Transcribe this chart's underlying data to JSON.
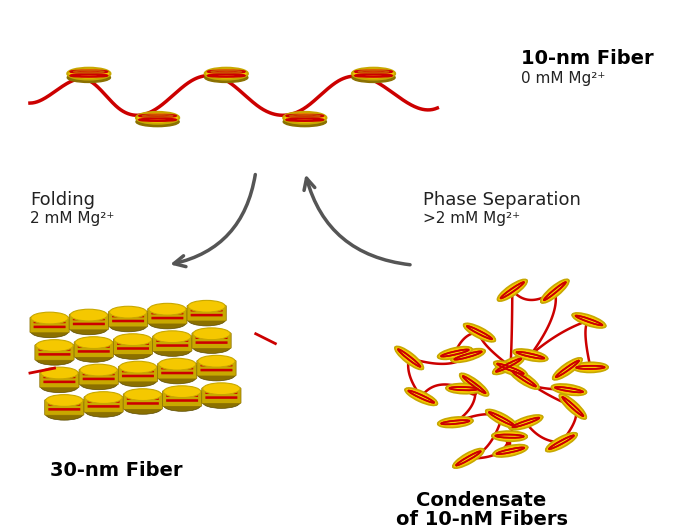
{
  "background_color": "#ffffff",
  "title_10nm": "10-nm Fiber",
  "subtitle_10nm": "0 mM Mg²⁺",
  "title_30nm": "30-nm Fiber",
  "title_condensate_line1": "Condensate",
  "title_condensate_line2": "of 10-nM Fibers",
  "label_folding_line1": "Folding",
  "label_folding_line2": "2 mM Mg²⁺",
  "label_phase_line1": "Phase Separation",
  "label_phase_line2": ">2 mM Mg²⁺",
  "nucleosome_outer_color": "#f5c800",
  "nucleosome_mid_color": "#c8a800",
  "nucleosome_stripe_color": "#cc0000",
  "nucleosome_dark_color": "#8b7000",
  "dna_color": "#cc0000",
  "arrow_color": "#555555",
  "text_color": "#222222",
  "bold_color": "#000000"
}
